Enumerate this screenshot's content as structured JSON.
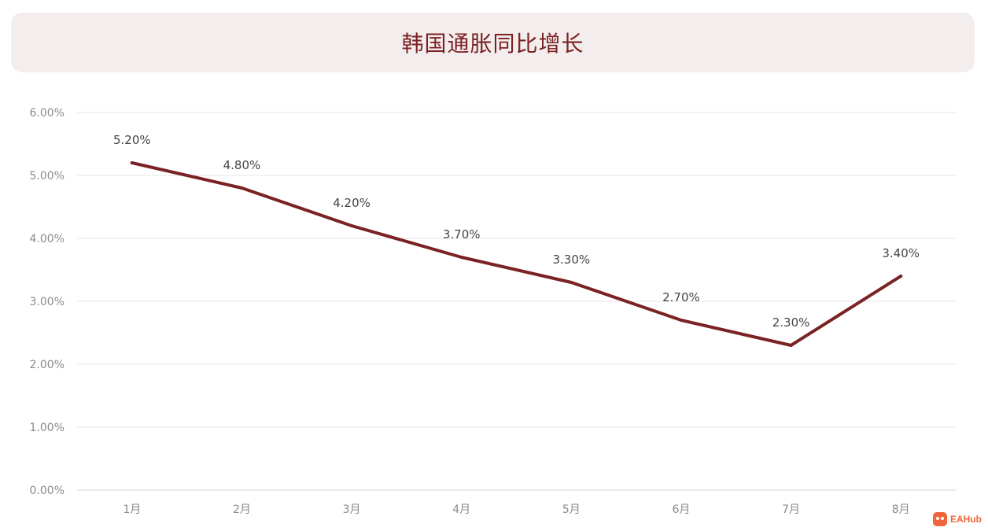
{
  "header": {
    "title": "韩国通胀同比增长"
  },
  "chart_data": {
    "type": "line",
    "title": "韩国通胀同比增长",
    "xlabel": "",
    "ylabel": "",
    "categories": [
      "1月",
      "2月",
      "3月",
      "4月",
      "5月",
      "6月",
      "7月",
      "8月"
    ],
    "series": [
      {
        "values": [
          5.2,
          4.8,
          4.2,
          3.7,
          3.3,
          2.7,
          2.3,
          3.4
        ],
        "data_labels": [
          "5.20%",
          "4.80%",
          "4.20%",
          "3.70%",
          "3.30%",
          "2.70%",
          "2.30%",
          "3.40%"
        ],
        "color": "#7a2224"
      }
    ],
    "ylim": [
      0,
      6
    ],
    "yticks": [
      "0.00%",
      "1.00%",
      "2.00%",
      "3.00%",
      "4.00%",
      "5.00%",
      "6.00%"
    ],
    "grid": true,
    "legend": "none"
  },
  "watermark": {
    "icon": "eahub-logo-icon",
    "text": "EAHub",
    "color": "#f0663a"
  },
  "colors": {
    "line": "#7a2224",
    "title": "#7a2224",
    "title_bg": "#f4eded",
    "grid": "#e6e6e6",
    "axis_text": "#8a8a8a",
    "label_text": "#444444"
  }
}
